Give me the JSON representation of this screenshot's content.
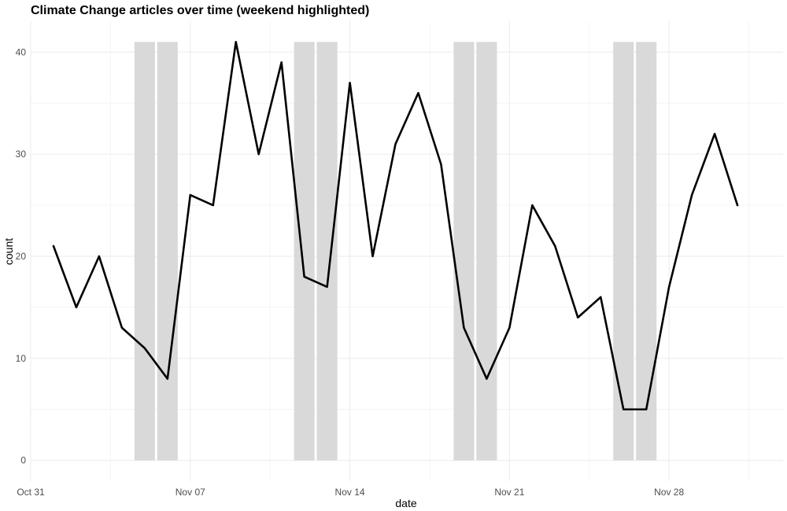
{
  "chart_data": {
    "type": "line",
    "title": "Climate Change articles over time (weekend highlighted)",
    "xlabel": "date",
    "ylabel": "count",
    "x_type": "date",
    "xlim": [
      "2021-10-31",
      "2021-12-03"
    ],
    "ylim": [
      0,
      41
    ],
    "x_ticks": [
      {
        "date": "2021-10-31",
        "label": "Oct 31"
      },
      {
        "date": "2021-11-07",
        "label": "Nov 07"
      },
      {
        "date": "2021-11-14",
        "label": "Nov 14"
      },
      {
        "date": "2021-11-21",
        "label": "Nov 21"
      },
      {
        "date": "2021-11-28",
        "label": "Nov 28"
      }
    ],
    "y_ticks": [
      0,
      10,
      20,
      30,
      40
    ],
    "grid": true,
    "weekend_highlight_color": "#d9d9d9",
    "weekend_days": [
      "2021-11-05",
      "2021-11-06",
      "2021-11-12",
      "2021-11-13",
      "2021-11-19",
      "2021-11-20",
      "2021-11-26",
      "2021-11-27"
    ],
    "series": [
      {
        "color": "#000000",
        "x": [
          "2021-11-01",
          "2021-11-02",
          "2021-11-03",
          "2021-11-04",
          "2021-11-05",
          "2021-11-06",
          "2021-11-07",
          "2021-11-08",
          "2021-11-09",
          "2021-11-10",
          "2021-11-11",
          "2021-11-12",
          "2021-11-13",
          "2021-11-14",
          "2021-11-15",
          "2021-11-16",
          "2021-11-17",
          "2021-11-18",
          "2021-11-19",
          "2021-11-20",
          "2021-11-21",
          "2021-11-22",
          "2021-11-23",
          "2021-11-24",
          "2021-11-25",
          "2021-11-26",
          "2021-11-27",
          "2021-11-28",
          "2021-11-29",
          "2021-11-30",
          "2021-12-01"
        ],
        "values": [
          21,
          15,
          20,
          13,
          11,
          8,
          26,
          25,
          41,
          30,
          39,
          18,
          17,
          37,
          20,
          31,
          36,
          29,
          13,
          8,
          13,
          25,
          21,
          14,
          16,
          5,
          5,
          17,
          26,
          32,
          25
        ]
      }
    ]
  }
}
